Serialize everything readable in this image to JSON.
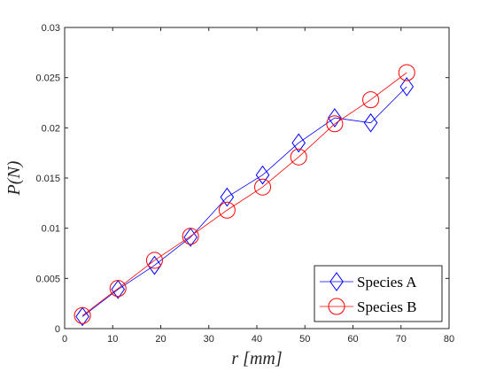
{
  "chart_data": {
    "type": "line",
    "title": "",
    "xlabel": "r [mm]",
    "ylabel": "P(N)",
    "xlim": [
      0,
      80
    ],
    "ylim": [
      0,
      0.03
    ],
    "xticks": [
      0,
      10,
      20,
      30,
      40,
      50,
      60,
      70,
      80
    ],
    "yticks": [
      0,
      0.005,
      0.01,
      0.015,
      0.02,
      0.025,
      0.03
    ],
    "xtick_labels": [
      "0",
      "10",
      "20",
      "30",
      "40",
      "50",
      "60",
      "70",
      "80"
    ],
    "ytick_labels": [
      "0",
      "0.005",
      "0.01",
      "0.015",
      "0.02",
      "0.025",
      "0.03"
    ],
    "grid": false,
    "legend_position": "bottom-right",
    "series": [
      {
        "name": "Species A",
        "color": "#0000ff",
        "marker": "diamond",
        "x": [
          3.7,
          11.1,
          18.7,
          26.2,
          33.8,
          41.2,
          48.7,
          56.2,
          63.7,
          71.2
        ],
        "y": [
          0.0012,
          0.0039,
          0.0063,
          0.0091,
          0.0131,
          0.0153,
          0.0185,
          0.021,
          0.0205,
          0.0241
        ]
      },
      {
        "name": "Species B",
        "color": "#ff0000",
        "marker": "circle",
        "x": [
          3.7,
          11.1,
          18.7,
          26.2,
          33.8,
          41.2,
          48.7,
          56.2,
          63.7,
          71.2
        ],
        "y": [
          0.0013,
          0.004,
          0.0068,
          0.0092,
          0.0118,
          0.0141,
          0.0171,
          0.0204,
          0.0228,
          0.0255
        ]
      }
    ]
  }
}
